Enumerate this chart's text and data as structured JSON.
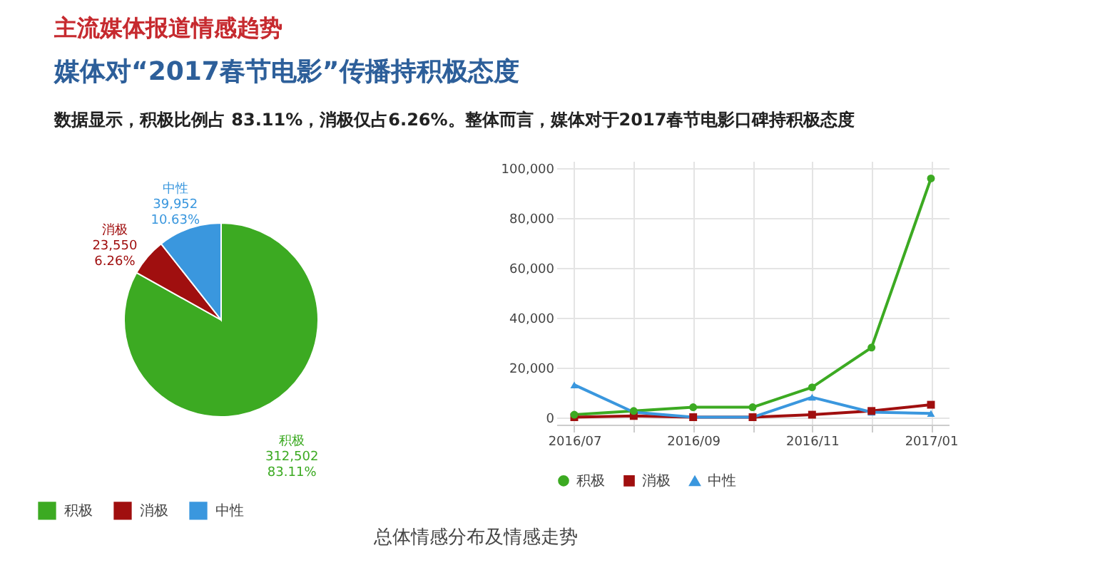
{
  "chart_data": [
    {
      "type": "pie",
      "title": "主流媒体报道情感趋势",
      "subtitle": "媒体对“2017春节电影”传播持积极态度",
      "annotations": [
        "数据显示，积极比例占 83.11%，消极仅占6.26%。整体而言，媒体对于2017春节电影口碑持积极态度",
        "总体情感分布及情感走势"
      ],
      "categories": [
        "积极",
        "消极",
        "中性"
      ],
      "values": [
        312502,
        23550,
        39952
      ],
      "colors": [
        "#3caa22",
        "#a00f0f",
        "#3a97de"
      ],
      "value_labels": [
        "积极\n312,502\n83.11%",
        "消极\n23,550\n6.26%",
        "中性\n39,952\n10.63%"
      ],
      "legend": "bottom"
    },
    {
      "type": "line",
      "categories": [
        "2016/07",
        null,
        "2016/09",
        null,
        "2016/11",
        null,
        "2017/01"
      ],
      "series": [
        {
          "name": "积极",
          "color": "#3caa22",
          "marker": "circle",
          "values": [
            1000,
            2500,
            4000,
            4000,
            12000,
            28000,
            96000
          ]
        },
        {
          "name": "消极",
          "color": "#a00f0f",
          "marker": "square",
          "values": [
            0,
            500,
            0,
            0,
            1000,
            2500,
            5000
          ]
        },
        {
          "name": "中性",
          "color": "#3a97de",
          "marker": "triangle",
          "values": [
            13000,
            2000,
            0,
            0,
            8000,
            2000,
            1500
          ]
        }
      ],
      "ylim": [
        -3000,
        103000
      ],
      "yticks": [
        0,
        {
          "value": 20000,
          "label": "20,000"
        },
        {
          "value": 40000,
          "label": "40,000"
        },
        {
          "value": 60000,
          "label": "60,000"
        },
        {
          "value": 80000,
          "label": "80,000"
        },
        {
          "value": 100000,
          "label": "100,000"
        }
      ],
      "grid": true,
      "legend": "bottom"
    }
  ]
}
